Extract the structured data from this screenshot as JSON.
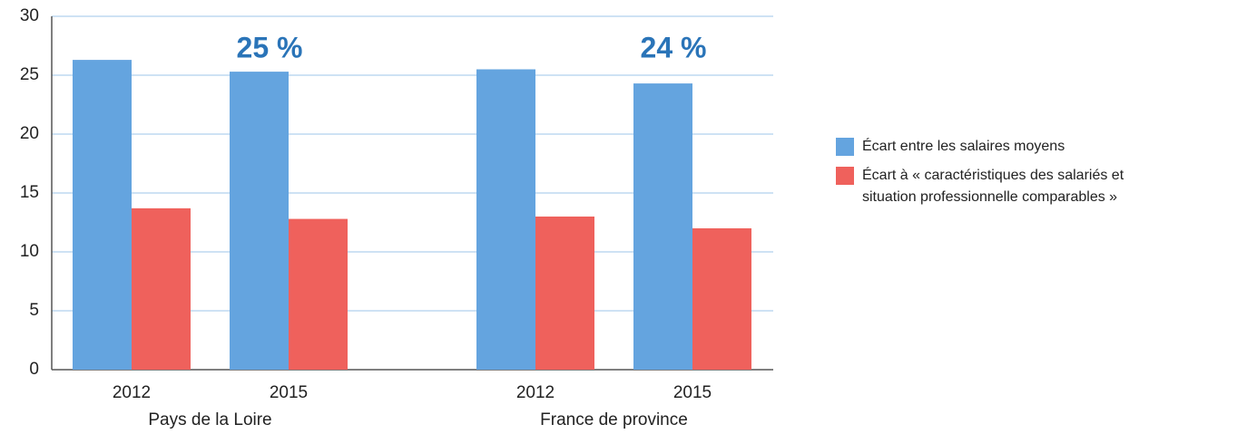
{
  "chart_data": {
    "type": "bar",
    "categories": [
      "2012",
      "2015",
      "2012",
      "2015"
    ],
    "groups": [
      "Pays de la Loire",
      "France de province"
    ],
    "series": [
      {
        "name": "Écart entre les salaires moyens",
        "color": "#64a4df",
        "values": [
          26.3,
          25.3,
          25.5,
          24.3
        ]
      },
      {
        "name": "Écart à « caractéristiques des salariés et situation professionnelle comparables »",
        "color": "#ef615c",
        "values": [
          13.7,
          12.8,
          13.0,
          12.0
        ]
      }
    ],
    "annotations": [
      "25 %",
      "24 %"
    ],
    "ylim": [
      0,
      30
    ],
    "yticks": [
      0,
      5,
      10,
      15,
      20,
      25,
      30
    ],
    "grid": true,
    "legend": "right"
  }
}
